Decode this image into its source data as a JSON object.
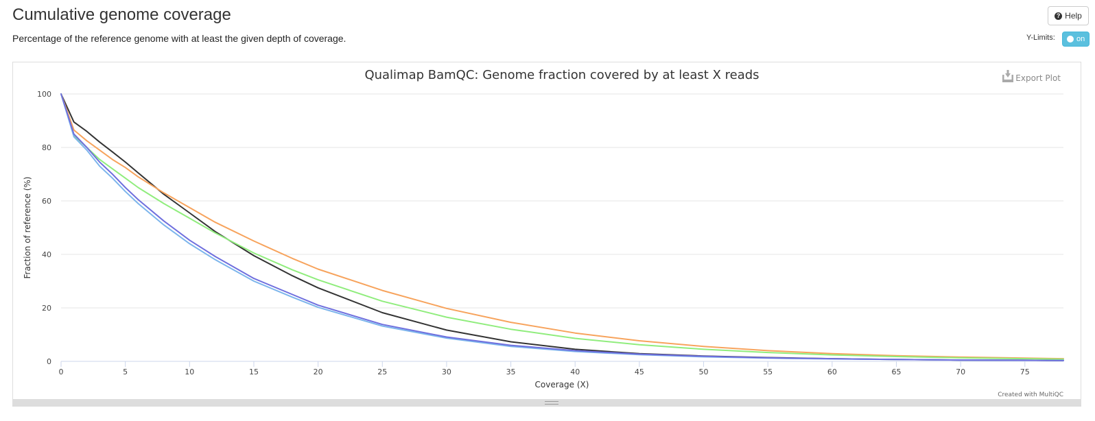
{
  "header": {
    "title": "Cumulative genome coverage",
    "description": "Percentage of the reference genome with at least the given depth of coverage."
  },
  "controls": {
    "help_label": "Help",
    "help_icon": "question-circle-icon",
    "ylimits_label": "Y-Limits:",
    "ylimits_toggle": "on"
  },
  "plot": {
    "export_label": "Export Plot",
    "export_icon": "download-icon",
    "credit": "Created with MultiQC"
  },
  "chart_data": {
    "type": "line",
    "title": "Qualimap BamQC: Genome fraction covered by at least X reads",
    "xlabel": "Coverage (X)",
    "ylabel": "Fraction of reference (%)",
    "xlim": [
      0,
      78
    ],
    "ylim": [
      0,
      100
    ],
    "xticks": [
      0,
      5,
      10,
      15,
      20,
      25,
      30,
      35,
      40,
      45,
      50,
      55,
      60,
      65,
      70,
      75
    ],
    "yticks": [
      0,
      20,
      40,
      60,
      80,
      100
    ],
    "grid": true,
    "legend": "none",
    "x": [
      0,
      1,
      2,
      3,
      4,
      5,
      6,
      8,
      10,
      12,
      15,
      18,
      20,
      25,
      30,
      35,
      40,
      45,
      50,
      55,
      60,
      65,
      70,
      75,
      78
    ],
    "series": [
      {
        "color": "#333333",
        "values": [
          100,
          89.5,
          86,
          82,
          78.3,
          74.5,
          70.5,
          62.5,
          55.5,
          48.5,
          39.5,
          32,
          27.5,
          18.2,
          11.7,
          7.3,
          4.5,
          2.9,
          2.0,
          1.4,
          1.0,
          0.7,
          0.5,
          0.4,
          0.3
        ]
      },
      {
        "color": "#f7a35c",
        "values": [
          100,
          86.5,
          82.5,
          79,
          75.5,
          72.5,
          69,
          63,
          57.5,
          52,
          45,
          38.5,
          34.5,
          26.5,
          19.8,
          14.6,
          10.6,
          7.7,
          5.6,
          4.0,
          2.9,
          2.1,
          1.6,
          1.2,
          1.0
        ]
      },
      {
        "color": "#90ed7d",
        "values": [
          100,
          84.5,
          80,
          75.5,
          72,
          68.5,
          65,
          59,
          53.5,
          48,
          40.5,
          34.2,
          30.5,
          22.5,
          16.5,
          12.0,
          8.6,
          6.2,
          4.5,
          3.3,
          2.4,
          1.8,
          1.3,
          1.0,
          0.8
        ]
      },
      {
        "color": "#7cb5ec",
        "values": [
          100,
          84,
          79,
          73,
          68.5,
          63.5,
          59,
          51,
          44,
          38,
          30,
          24,
          20.2,
          13.2,
          8.7,
          5.6,
          3.7,
          2.5,
          1.7,
          1.2,
          0.9,
          0.7,
          0.5,
          0.4,
          0.3
        ]
      },
      {
        "color": "#6f6fde",
        "values": [
          100,
          85,
          80,
          74.5,
          70,
          65,
          60.5,
          52.5,
          45.3,
          39.2,
          31,
          25,
          21,
          13.8,
          9.1,
          6.0,
          4.0,
          2.7,
          1.9,
          1.3,
          1.0,
          0.7,
          0.5,
          0.4,
          0.3
        ]
      }
    ]
  }
}
